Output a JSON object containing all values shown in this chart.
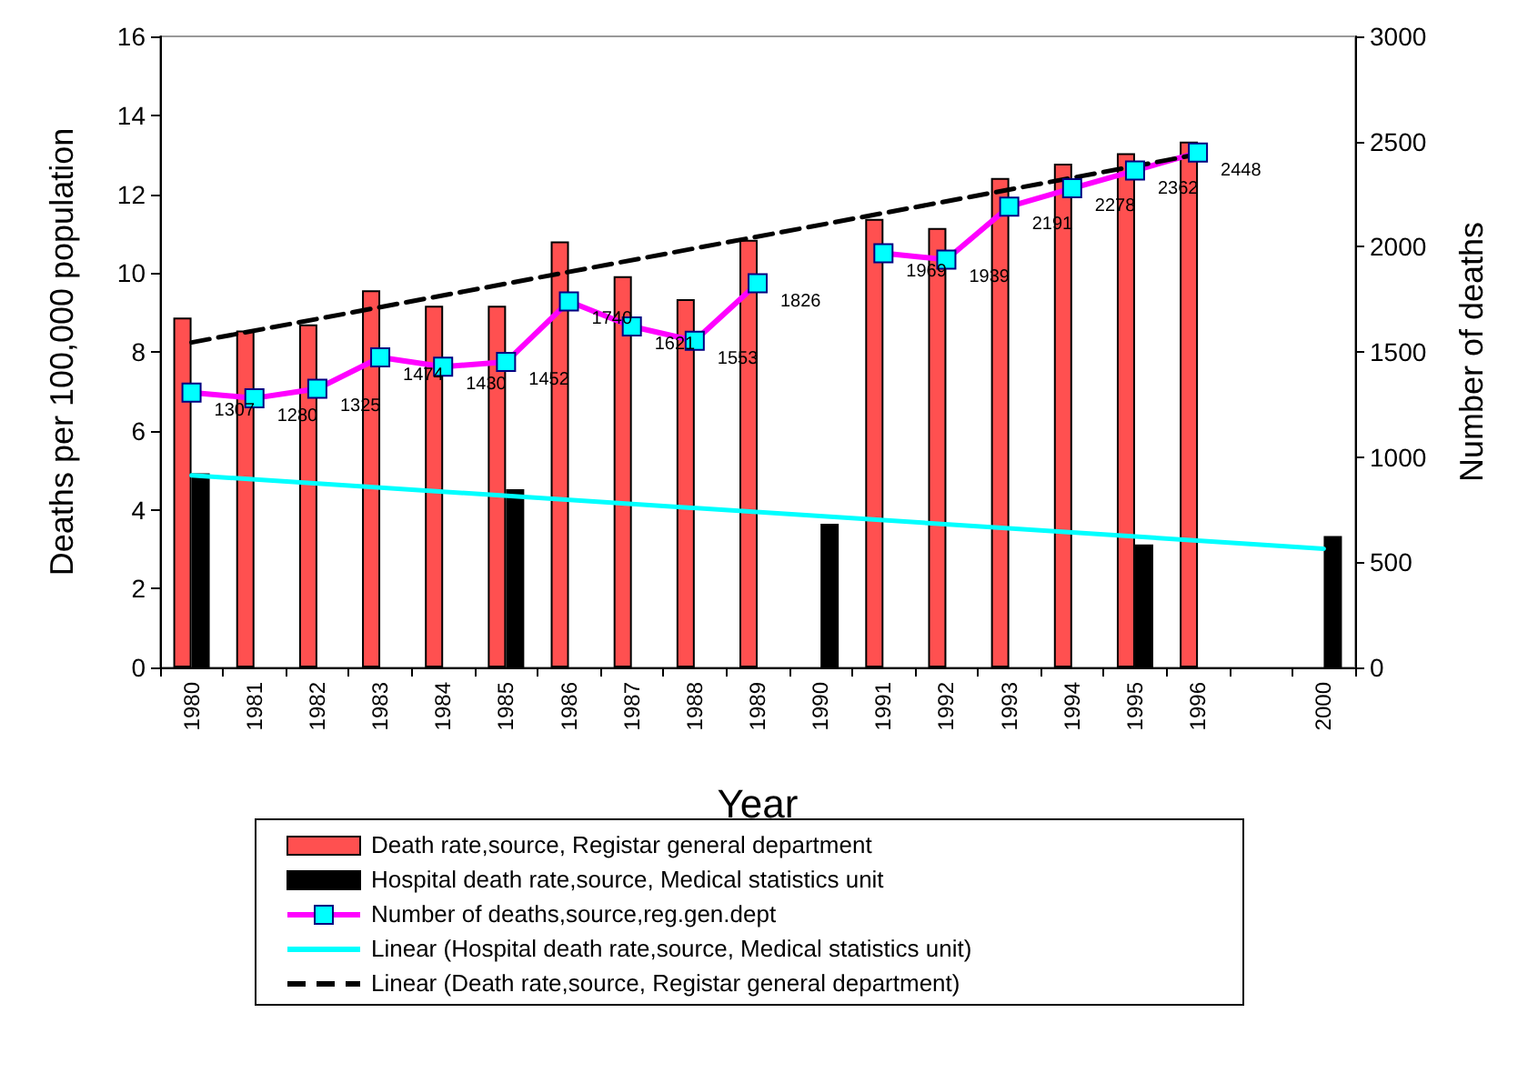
{
  "chart_data": {
    "type": "bar",
    "categories": [
      "1980",
      "1981",
      "1982",
      "1983",
      "1984",
      "1985",
      "1986",
      "1987",
      "1988",
      "1989",
      "1990",
      "1991",
      "1992",
      "1993",
      "1994",
      "1995",
      "1996",
      null,
      "2000"
    ],
    "xlabel": "Year",
    "ylabel": "Deaths per 100,000 population",
    "y2label": "Number of deaths",
    "ylim": [
      0,
      16
    ],
    "yticks": [
      0,
      2,
      4,
      6,
      8,
      10,
      12,
      14,
      16
    ],
    "y2lim": [
      0,
      3000
    ],
    "y2ticks": [
      0,
      500,
      1000,
      1500,
      2000,
      2500,
      3000
    ],
    "grid": false,
    "legend": "bottom",
    "series": [
      {
        "name": "Death rate,source, Registar general department",
        "color": "#ff5050",
        "values": [
          8.87,
          8.54,
          8.7,
          9.56,
          9.17,
          9.17,
          10.8,
          9.92,
          9.34,
          10.84,
          null,
          11.37,
          11.14,
          12.41,
          12.77,
          13.04,
          13.33,
          null,
          null
        ]
      },
      {
        "name": "Hospital death rate,source, Medical statistics unit",
        "color": "#000000",
        "values": [
          4.92,
          null,
          null,
          null,
          null,
          4.52,
          null,
          null,
          null,
          null,
          3.64,
          null,
          null,
          null,
          null,
          3.12,
          null,
          null,
          3.33
        ]
      },
      {
        "name": "Number of deaths,source,reg.gen.dept",
        "type": "line",
        "axis": "y2",
        "color": "#ff00ff",
        "marker": "square",
        "line_style": "solid",
        "values": [
          1307,
          1280,
          1325,
          1474,
          1430,
          1452,
          1740,
          1621,
          1553,
          1826,
          null,
          1969,
          1939,
          2191,
          2278,
          2362,
          2448,
          null,
          null
        ],
        "value_labels": [
          "1307",
          "1280",
          "1325",
          "1474",
          "1430",
          "1452",
          "1740",
          "1621",
          "1553",
          "1826",
          null,
          "1969",
          "1939",
          "2191",
          "2278",
          "2362",
          "2448",
          null,
          null
        ]
      },
      {
        "name": "Linear (Hospital death rate,source, Medical statistics unit)",
        "type": "line",
        "color": "#00ffff",
        "marker": "none",
        "line_style": "solid",
        "values": [
          4.87,
          null,
          null,
          null,
          null,
          null,
          null,
          null,
          null,
          null,
          null,
          null,
          null,
          null,
          null,
          null,
          null,
          null,
          3.01
        ]
      },
      {
        "name": "Linear (Death rate,source, Registar general department)",
        "type": "line",
        "color": "#000000",
        "marker": "none",
        "line_style": "dashed",
        "values": [
          8.24,
          null,
          null,
          null,
          null,
          null,
          null,
          null,
          null,
          null,
          null,
          null,
          null,
          null,
          null,
          null,
          13.01,
          null,
          null
        ]
      }
    ]
  }
}
